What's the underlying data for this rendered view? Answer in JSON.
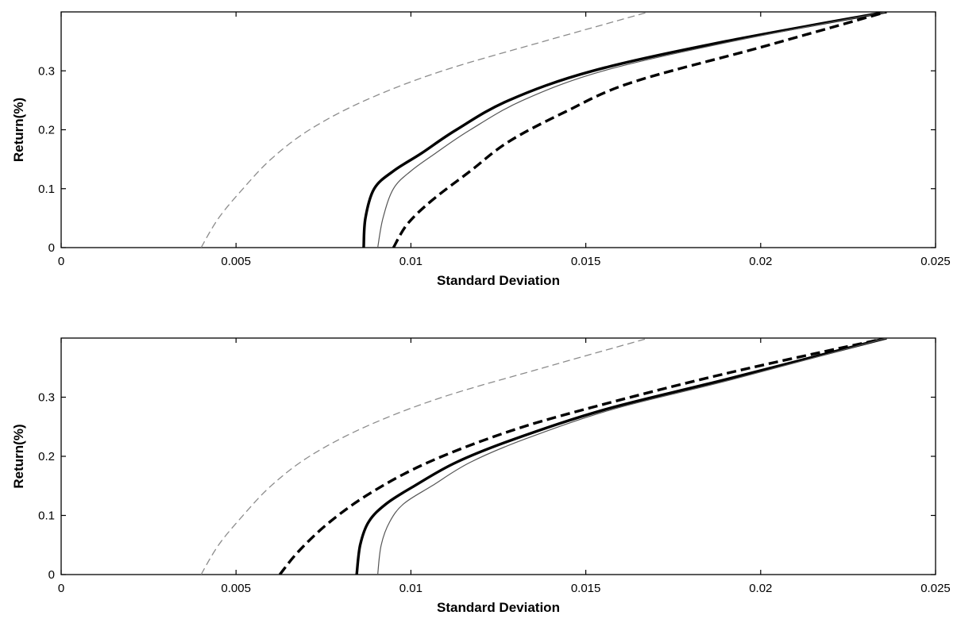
{
  "chart_data": [
    {
      "type": "line",
      "xlabel": "Standard Deviation",
      "ylabel": "Return(%)",
      "xlim": [
        0,
        0.025
      ],
      "ylim": [
        0,
        0.4
      ],
      "xticks": [
        0,
        0.005,
        0.01,
        0.015,
        0.02,
        0.025
      ],
      "xtick_labels": [
        "0",
        "0.005",
        "0.01",
        "0.015",
        "0.02",
        "0.025"
      ],
      "yticks": [
        0,
        0.1,
        0.2,
        0.3
      ],
      "ytick_labels": [
        "0",
        "0.1",
        "0.2",
        "0.3"
      ],
      "grid": false,
      "series": [
        {
          "style": "thin-dashed",
          "color": "#8c8c8c",
          "points": [
            [
              0.004,
              0.0
            ],
            [
              0.0045,
              0.05
            ],
            [
              0.0052,
              0.1
            ],
            [
              0.006,
              0.15
            ],
            [
              0.0071,
              0.2
            ],
            [
              0.0087,
              0.25
            ],
            [
              0.0109,
              0.3
            ],
            [
              0.0138,
              0.35
            ],
            [
              0.0168,
              0.4
            ]
          ]
        },
        {
          "style": "thick-solid",
          "color": "#000000",
          "points": [
            [
              0.00865,
              0.0
            ],
            [
              0.0087,
              0.05
            ],
            [
              0.00895,
              0.1
            ],
            [
              0.0095,
              0.13
            ],
            [
              0.0103,
              0.16
            ],
            [
              0.0113,
              0.2
            ],
            [
              0.0128,
              0.25
            ],
            [
              0.0152,
              0.3
            ],
            [
              0.019,
              0.35
            ],
            [
              0.0236,
              0.4
            ]
          ]
        },
        {
          "style": "thin-solid",
          "color": "#555555",
          "points": [
            [
              0.00905,
              0.0
            ],
            [
              0.0092,
              0.05
            ],
            [
              0.0095,
              0.1
            ],
            [
              0.01,
              0.13
            ],
            [
              0.0107,
              0.16
            ],
            [
              0.0117,
              0.2
            ],
            [
              0.0132,
              0.25
            ],
            [
              0.0155,
              0.3
            ],
            [
              0.0192,
              0.35
            ],
            [
              0.0236,
              0.4
            ]
          ]
        },
        {
          "style": "thick-dashed",
          "color": "#000000",
          "points": [
            [
              0.0095,
              0.0
            ],
            [
              0.0099,
              0.04
            ],
            [
              0.0106,
              0.08
            ],
            [
              0.0117,
              0.13
            ],
            [
              0.0128,
              0.18
            ],
            [
              0.0144,
              0.23
            ],
            [
              0.0163,
              0.28
            ],
            [
              0.02,
              0.34
            ],
            [
              0.0236,
              0.4
            ]
          ]
        }
      ]
    },
    {
      "type": "line",
      "xlabel": "Standard Deviation",
      "ylabel": "Return(%)",
      "xlim": [
        0,
        0.025
      ],
      "ylim": [
        0,
        0.4
      ],
      "xticks": [
        0,
        0.005,
        0.01,
        0.015,
        0.02,
        0.025
      ],
      "xtick_labels": [
        "0",
        "0.005",
        "0.01",
        "0.015",
        "0.02",
        "0.025"
      ],
      "yticks": [
        0,
        0.1,
        0.2,
        0.3
      ],
      "ytick_labels": [
        "0",
        "0.1",
        "0.2",
        "0.3"
      ],
      "grid": false,
      "series": [
        {
          "style": "thin-dashed",
          "color": "#8c8c8c",
          "points": [
            [
              0.004,
              0.0
            ],
            [
              0.0045,
              0.05
            ],
            [
              0.0052,
              0.1
            ],
            [
              0.006,
              0.15
            ],
            [
              0.0071,
              0.2
            ],
            [
              0.0087,
              0.25
            ],
            [
              0.0109,
              0.3
            ],
            [
              0.0138,
              0.35
            ],
            [
              0.0168,
              0.4
            ]
          ]
        },
        {
          "style": "thick-dashed",
          "color": "#000000",
          "points": [
            [
              0.00625,
              0.0
            ],
            [
              0.0068,
              0.04
            ],
            [
              0.0077,
              0.09
            ],
            [
              0.0089,
              0.14
            ],
            [
              0.0105,
              0.19
            ],
            [
              0.0127,
              0.24
            ],
            [
              0.015,
              0.28
            ],
            [
              0.019,
              0.34
            ],
            [
              0.0236,
              0.4
            ]
          ]
        },
        {
          "style": "thick-solid",
          "color": "#000000",
          "points": [
            [
              0.00845,
              0.0
            ],
            [
              0.00855,
              0.05
            ],
            [
              0.0088,
              0.09
            ],
            [
              0.0093,
              0.12
            ],
            [
              0.0101,
              0.15
            ],
            [
              0.0113,
              0.19
            ],
            [
              0.013,
              0.23
            ],
            [
              0.0156,
              0.28
            ],
            [
              0.019,
              0.33
            ],
            [
              0.0236,
              0.4
            ]
          ]
        },
        {
          "style": "thin-solid",
          "color": "#555555",
          "points": [
            [
              0.00905,
              0.0
            ],
            [
              0.00915,
              0.05
            ],
            [
              0.0094,
              0.09
            ],
            [
              0.0098,
              0.12
            ],
            [
              0.0106,
              0.15
            ],
            [
              0.0117,
              0.19
            ],
            [
              0.0133,
              0.23
            ],
            [
              0.0158,
              0.28
            ],
            [
              0.0192,
              0.33
            ],
            [
              0.0236,
              0.4
            ]
          ]
        }
      ]
    }
  ]
}
